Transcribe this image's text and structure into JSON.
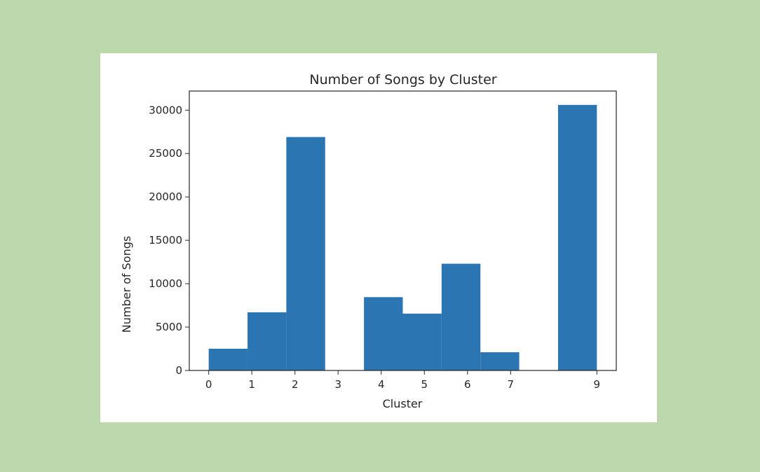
{
  "page": {
    "background": "#bcd8ac",
    "panel_background": "#ffffff"
  },
  "chart_data": {
    "type": "bar",
    "title": "Number of Songs by Cluster",
    "xlabel": "Cluster",
    "ylabel": "Number of Songs",
    "bar_color": "#2a75b2",
    "x_ticks": [
      "0",
      "1",
      "2",
      "3",
      "4",
      "5",
      "6",
      "7",
      "9"
    ],
    "x_tick_values": [
      0,
      1,
      2,
      3,
      4,
      5,
      6,
      7,
      9
    ],
    "y_ticks": [
      "0",
      "5000",
      "10000",
      "15000",
      "20000",
      "25000",
      "30000"
    ],
    "y_tick_values": [
      0,
      5000,
      10000,
      15000,
      20000,
      25000,
      30000
    ],
    "xlim": [
      -0.45,
      9.45
    ],
    "ylim": [
      0,
      32200
    ],
    "grid": false,
    "bins": [
      {
        "start": 0.0,
        "end": 0.9,
        "value": 2500
      },
      {
        "start": 0.9,
        "end": 1.8,
        "value": 6700
      },
      {
        "start": 1.8,
        "end": 2.7,
        "value": 26900
      },
      {
        "start": 2.7,
        "end": 3.6,
        "value": 0
      },
      {
        "start": 3.6,
        "end": 4.5,
        "value": 8450
      },
      {
        "start": 4.5,
        "end": 5.4,
        "value": 6550
      },
      {
        "start": 5.4,
        "end": 6.3,
        "value": 12300
      },
      {
        "start": 6.3,
        "end": 7.2,
        "value": 2100
      },
      {
        "start": 7.2,
        "end": 8.1,
        "value": 0
      },
      {
        "start": 8.1,
        "end": 9.0,
        "value": 30600
      }
    ]
  }
}
